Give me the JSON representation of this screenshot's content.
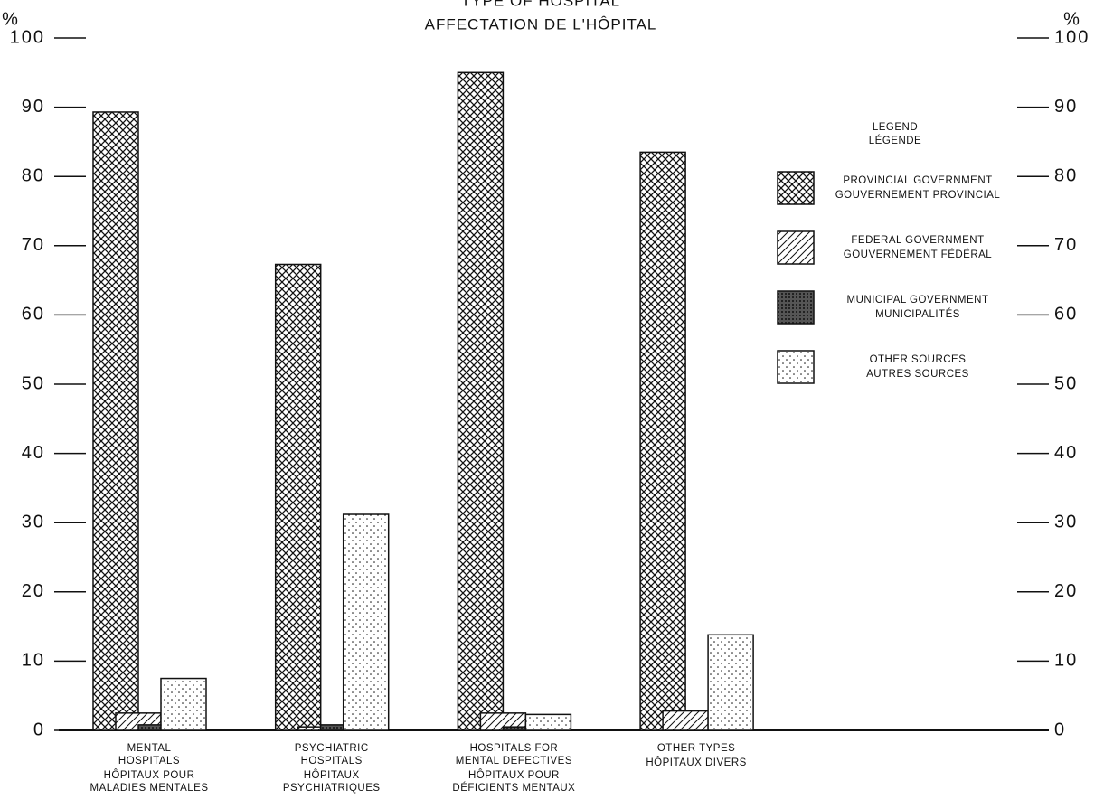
{
  "chart_data": {
    "type": "bar",
    "title": "TYPE OF HOSPITAL",
    "subtitle": "AFFECTATION DE L'HÔPITAL",
    "ylabel": "%",
    "categories": [
      {
        "en": [
          "MENTAL",
          "HOSPITALS"
        ],
        "fr": [
          "HÔPITAUX POUR",
          "MALADIES MENTALES"
        ]
      },
      {
        "en": [
          "PSYCHIATRIC",
          "HOSPITALS"
        ],
        "fr": [
          "HÔPITAUX",
          "PSYCHIATRIQUES"
        ]
      },
      {
        "en": [
          "HOSPITALS FOR",
          "MENTAL DEFECTIVES"
        ],
        "fr": [
          "HÔPITAUX POUR",
          "DÉFICIENTS MENTAUX"
        ]
      },
      {
        "en": [
          "OTHER TYPES"
        ],
        "fr": [
          "HÔPITAUX DIVERS"
        ]
      }
    ],
    "legend_title": [
      "LEGEND",
      "LÉGENDE"
    ],
    "series": [
      {
        "name": "PROVINCIAL GOVERNMENT",
        "name_fr": "GOUVERNEMENT PROVINCIAL",
        "color": "#111111",
        "pattern": "crosshatch",
        "values": [
          89.3,
          67.3,
          95,
          83.5
        ]
      },
      {
        "name": "FEDERAL GOVERNMENT",
        "name_fr": "GOUVERNEMENT FÉDÉRAL",
        "color": "#111111",
        "pattern": "hatch",
        "values": [
          2.5,
          0.5,
          2.5,
          2.8
        ]
      },
      {
        "name": "MUNICIPAL GOVERNMENT",
        "name_fr": "MUNICIPALITÉS",
        "color": "#111111",
        "pattern": "dense",
        "values": [
          0.8,
          0.8,
          0.5,
          0
        ]
      },
      {
        "name": "OTHER SOURCES",
        "name_fr": "AUTRES SOURCES",
        "color": "#111111",
        "pattern": "dots",
        "values": [
          7.5,
          31.2,
          2.3,
          13.8
        ]
      }
    ],
    "ylim": [
      0,
      100
    ],
    "yticks": [
      0,
      10,
      20,
      30,
      40,
      50,
      60,
      70,
      80,
      90,
      100
    ]
  }
}
